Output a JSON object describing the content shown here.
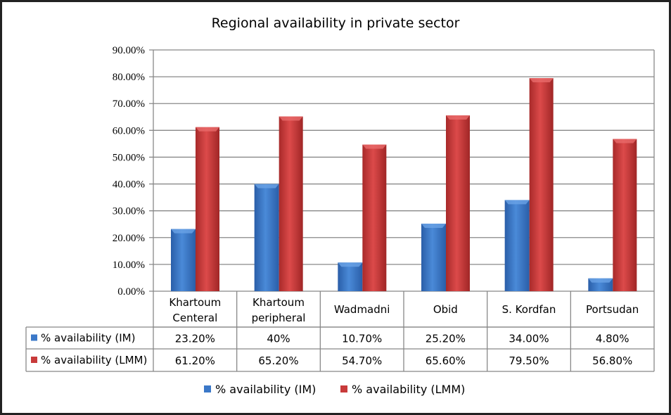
{
  "chart_data": {
    "type": "bar",
    "title": "Regional availability in private sector",
    "categories": [
      [
        "Khartoum",
        "Centeral"
      ],
      [
        "Khartoum",
        "peripheral"
      ],
      [
        "Wadmadni"
      ],
      [
        "Obid"
      ],
      [
        "S. Kordfan"
      ],
      [
        "Portsudan"
      ]
    ],
    "series": [
      {
        "name": "% availability (IM)",
        "values": [
          23.2,
          40,
          10.7,
          25.2,
          34.0,
          4.8
        ],
        "labels": [
          "23.20%",
          "40%",
          "10.70%",
          "25.20%",
          "34.00%",
          "4.80%"
        ],
        "color": "#3b78c8"
      },
      {
        "name": "% availability (LMM)",
        "values": [
          61.2,
          65.2,
          54.7,
          65.6,
          79.5,
          56.8
        ],
        "labels": [
          "61.20%",
          "65.20%",
          "54.70%",
          "65.60%",
          "79.50%",
          "56.80%"
        ],
        "color": "#c83a3a"
      }
    ],
    "yticks": [
      "0.00%",
      "10.00%",
      "20.00%",
      "30.00%",
      "40.00%",
      "50.00%",
      "60.00%",
      "70.00%",
      "80.00%",
      "90.00%"
    ],
    "ylim": [
      0,
      90
    ],
    "grid": true,
    "data_table": true,
    "legend": "bottom"
  }
}
